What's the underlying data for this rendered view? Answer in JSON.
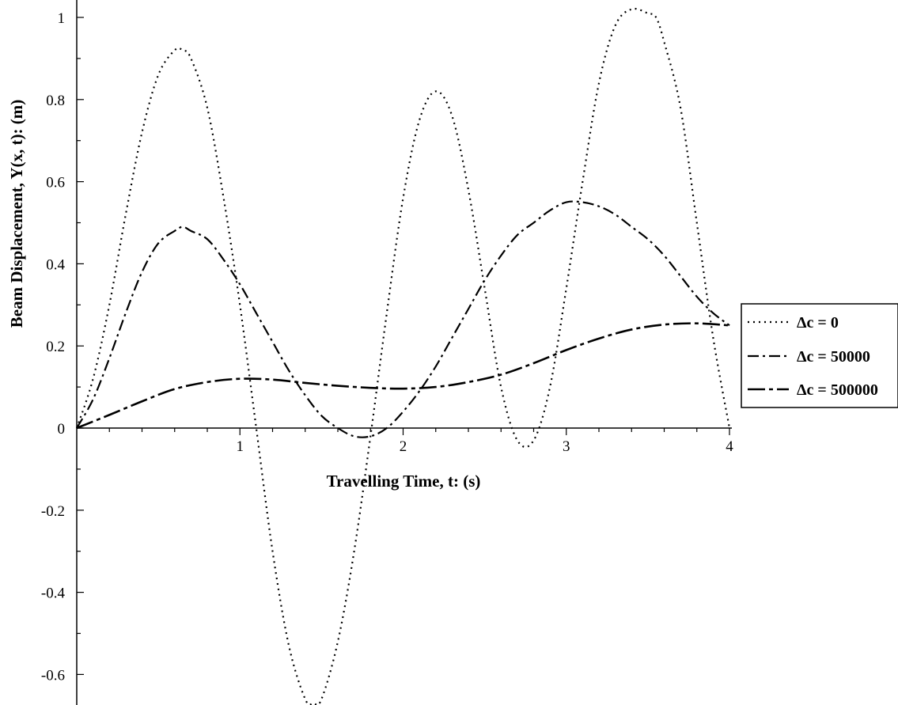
{
  "chart_data": {
    "type": "line",
    "title": "",
    "xlabel": "Travelling Time, t: (s)",
    "ylabel": "Beam Displacement, Y(x, t): (m)",
    "xlim": [
      0,
      4
    ],
    "ylim": [
      -0.68,
      1.02
    ],
    "xticks": [
      1,
      2,
      3,
      4
    ],
    "yticks": [
      -0.6,
      -0.4,
      -0.2,
      0,
      0.2,
      0.4,
      0.6,
      0.8,
      1
    ],
    "ytick_labels": [
      "-0.6",
      "-0.4",
      "-0.2",
      "0",
      "0.2",
      "0.4",
      "0.6",
      "0.8",
      "1"
    ],
    "grid": false,
    "legend_position": "right",
    "series": [
      {
        "name": "Δc = 0",
        "style": "dotted",
        "x": [
          0,
          0.1,
          0.2,
          0.3,
          0.4,
          0.5,
          0.6,
          0.65,
          0.7,
          0.8,
          0.9,
          1.0,
          1.1,
          1.2,
          1.3,
          1.4,
          1.45,
          1.5,
          1.6,
          1.7,
          1.8,
          1.9,
          2.0,
          2.1,
          2.2,
          2.3,
          2.4,
          2.5,
          2.6,
          2.7,
          2.8,
          2.9,
          3.0,
          3.1,
          3.2,
          3.3,
          3.4,
          3.5,
          3.55,
          3.6,
          3.7,
          3.8,
          3.9,
          4.0
        ],
        "values": [
          0,
          0.12,
          0.3,
          0.52,
          0.72,
          0.86,
          0.92,
          0.92,
          0.9,
          0.78,
          0.56,
          0.3,
          0.0,
          -0.3,
          -0.53,
          -0.66,
          -0.67,
          -0.66,
          -0.52,
          -0.3,
          -0.02,
          0.28,
          0.56,
          0.75,
          0.82,
          0.76,
          0.58,
          0.34,
          0.1,
          -0.03,
          -0.03,
          0.1,
          0.34,
          0.6,
          0.84,
          0.98,
          1.02,
          1.01,
          1.0,
          0.94,
          0.78,
          0.5,
          0.22,
          0.0
        ]
      },
      {
        "name": "Δc = 50000",
        "style": "dashdot",
        "x": [
          0,
          0.1,
          0.2,
          0.3,
          0.4,
          0.5,
          0.6,
          0.65,
          0.7,
          0.8,
          0.9,
          1.0,
          1.1,
          1.2,
          1.3,
          1.4,
          1.5,
          1.6,
          1.7,
          1.8,
          1.9,
          2.0,
          2.1,
          2.2,
          2.3,
          2.4,
          2.5,
          2.6,
          2.7,
          2.8,
          2.9,
          3.0,
          3.1,
          3.2,
          3.3,
          3.4,
          3.5,
          3.6,
          3.7,
          3.8,
          3.9,
          4.0
        ],
        "values": [
          0,
          0.07,
          0.17,
          0.28,
          0.38,
          0.45,
          0.48,
          0.49,
          0.48,
          0.46,
          0.41,
          0.35,
          0.28,
          0.21,
          0.14,
          0.08,
          0.03,
          0.0,
          -0.02,
          -0.02,
          0.0,
          0.04,
          0.09,
          0.15,
          0.22,
          0.29,
          0.36,
          0.42,
          0.47,
          0.5,
          0.53,
          0.55,
          0.55,
          0.54,
          0.52,
          0.49,
          0.46,
          0.42,
          0.37,
          0.32,
          0.28,
          0.25
        ],
        "values_note_hidden": null
      },
      {
        "name": "Δc = 500000",
        "style": "longdash",
        "x": [
          0,
          0.2,
          0.4,
          0.6,
          0.8,
          1.0,
          1.2,
          1.4,
          1.6,
          1.8,
          2.0,
          2.2,
          2.4,
          2.6,
          2.8,
          3.0,
          3.2,
          3.4,
          3.6,
          3.8,
          4.0
        ],
        "values": [
          0,
          0.032,
          0.065,
          0.095,
          0.112,
          0.12,
          0.118,
          0.11,
          0.103,
          0.098,
          0.096,
          0.1,
          0.112,
          0.13,
          0.158,
          0.19,
          0.218,
          0.24,
          0.252,
          0.255,
          0.25
        ]
      }
    ]
  }
}
